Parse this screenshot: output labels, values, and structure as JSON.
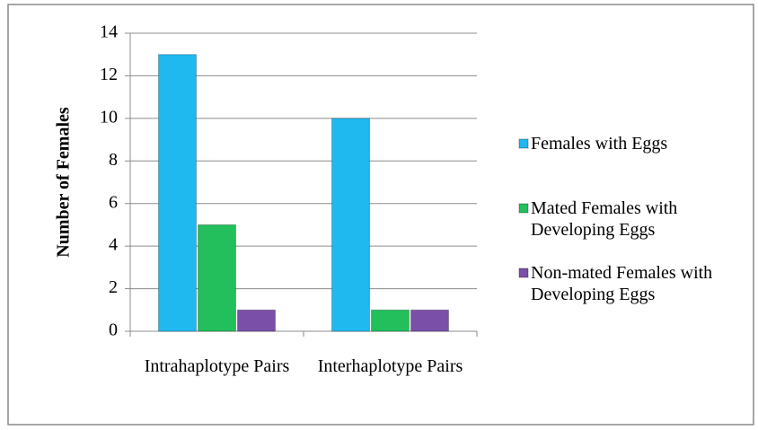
{
  "chart_data": {
    "type": "bar",
    "y_label": "Number of Females",
    "categories": [
      "Intrahaplotype Pairs",
      "Interhaplotype Pairs"
    ],
    "series": [
      {
        "name": "Females with Eggs",
        "color": "#1fb8ef",
        "values": [
          13,
          10
        ]
      },
      {
        "name": "Mated Females with Developing Eggs",
        "color": "#22bf5c",
        "values": [
          5,
          1
        ]
      },
      {
        "name": "Non-mated Females with Developing Eggs",
        "color": "#7a4fa8",
        "values": [
          1,
          1
        ]
      }
    ],
    "ylim": [
      0,
      14
    ],
    "yticks": [
      0,
      2,
      4,
      6,
      8,
      10,
      12,
      14
    ],
    "grid": true,
    "legend": "right"
  }
}
